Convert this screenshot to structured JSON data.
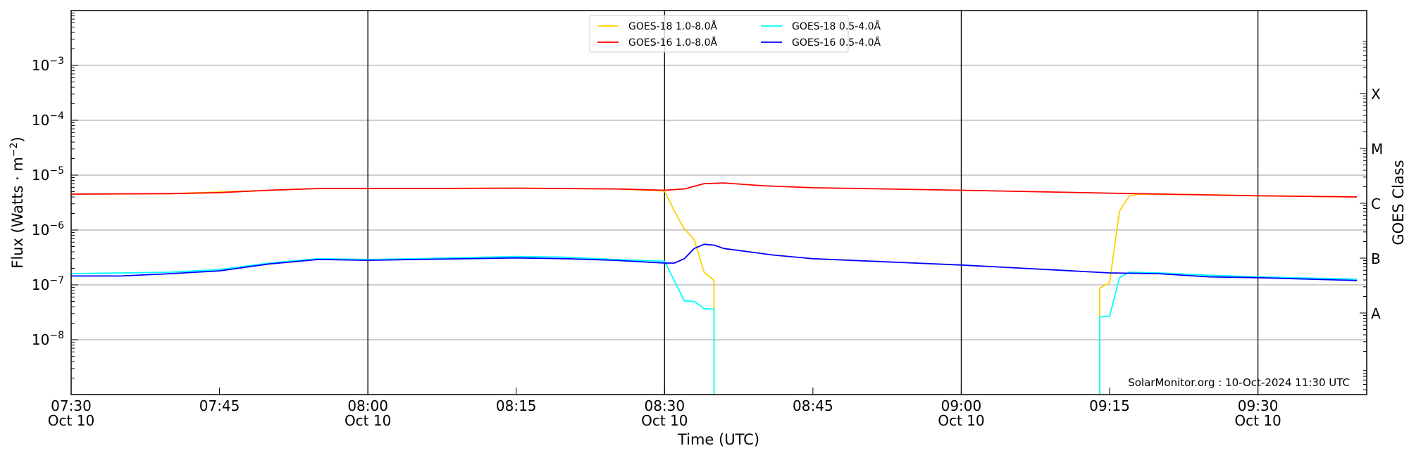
{
  "chart_data": {
    "type": "line",
    "xlabel": "Time (UTC)",
    "ylabel": "Flux (Watts · m",
    "ylabel_sup": "−2",
    "ylabel_close": ")",
    "right_ylabel": "GOES Class",
    "yscale": "log",
    "ylim": [
      1e-09,
      0.01
    ],
    "xlim": [
      "07:30",
      "09:41"
    ],
    "grid": "horizontal at decades",
    "legend_placement": "top-center",
    "y_ticks": [
      {
        "value": 1e-08,
        "base": "10",
        "exp": "−8"
      },
      {
        "value": 1e-07,
        "base": "10",
        "exp": "−7"
      },
      {
        "value": 1e-06,
        "base": "10",
        "exp": "−6"
      },
      {
        "value": 1e-05,
        "base": "10",
        "exp": "−5"
      },
      {
        "value": 0.0001,
        "base": "10",
        "exp": "−4"
      },
      {
        "value": 0.001,
        "base": "10",
        "exp": "−3"
      }
    ],
    "x_ticks": [
      {
        "time": "07:30",
        "label": "07:30",
        "date": "Oct 10"
      },
      {
        "time": "07:45",
        "label": "07:45",
        "date": ""
      },
      {
        "time": "08:00",
        "label": "08:00",
        "date": "Oct 10"
      },
      {
        "time": "08:15",
        "label": "08:15",
        "date": ""
      },
      {
        "time": "08:30",
        "label": "08:30",
        "date": "Oct 10"
      },
      {
        "time": "08:45",
        "label": "08:45",
        "date": ""
      },
      {
        "time": "09:00",
        "label": "09:00",
        "date": "Oct 10"
      },
      {
        "time": "09:15",
        "label": "09:15",
        "date": ""
      },
      {
        "time": "09:30",
        "label": "09:30",
        "date": "Oct 10"
      }
    ],
    "vertical_lines": [
      "08:00",
      "08:30",
      "09:00",
      "09:30"
    ],
    "goes_classes": [
      {
        "label": "X",
        "value": 0.000316
      },
      {
        "label": "M",
        "value": 3.16e-05
      },
      {
        "label": "C",
        "value": 3.16e-06
      },
      {
        "label": "B",
        "value": 3.16e-07
      },
      {
        "label": "A",
        "value": 3.16e-08
      }
    ],
    "series": [
      {
        "name": "GOES-18 1.0-8.0Å",
        "color": "#ffd000",
        "points": [
          [
            "07:30",
            4.5e-06
          ],
          [
            "07:40",
            4.6e-06
          ],
          [
            "07:50",
            5.3e-06
          ],
          [
            "07:55",
            5.7e-06
          ],
          [
            "08:05",
            5.7e-06
          ],
          [
            "08:15",
            5.8e-06
          ],
          [
            "08:25",
            5.6e-06
          ],
          [
            "08:30",
            5.15e-06
          ],
          [
            "08:31",
            2.2e-06
          ],
          [
            "08:32",
            1.05e-06
          ],
          [
            "08:33",
            6.7e-07
          ],
          [
            "08:34",
            1.7e-07
          ],
          [
            "08:35",
            1.2e-07
          ],
          [
            "08:35",
            0
          ],
          [
            "09:14",
            0
          ],
          [
            "09:14",
            8.7e-08
          ],
          [
            "09:15",
            1.1e-07
          ],
          [
            "09:16",
            2.2e-06
          ],
          [
            "09:17",
            4.2e-06
          ],
          [
            "09:18",
            4.5e-06
          ],
          [
            "09:25",
            4.4e-06
          ],
          [
            "09:30",
            4.2e-06
          ],
          [
            "09:40",
            4e-06
          ]
        ]
      },
      {
        "name": "GOES-16 1.0-8.0Å",
        "color": "#ff0000",
        "points": [
          [
            "07:30",
            4.5e-06
          ],
          [
            "07:40",
            4.6e-06
          ],
          [
            "07:45",
            4.8e-06
          ],
          [
            "07:50",
            5.3e-06
          ],
          [
            "07:55",
            5.7e-06
          ],
          [
            "08:05",
            5.7e-06
          ],
          [
            "08:15",
            5.8e-06
          ],
          [
            "08:25",
            5.6e-06
          ],
          [
            "08:30",
            5.3e-06
          ],
          [
            "08:32",
            5.6e-06
          ],
          [
            "08:34",
            7e-06
          ],
          [
            "08:36",
            7.2e-06
          ],
          [
            "08:40",
            6.4e-06
          ],
          [
            "08:45",
            5.9e-06
          ],
          [
            "09:00",
            5.3e-06
          ],
          [
            "09:15",
            4.7e-06
          ],
          [
            "09:30",
            4.2e-06
          ],
          [
            "09:40",
            4e-06
          ]
        ]
      },
      {
        "name": "GOES-18 0.5-4.0Å",
        "color": "#00ffff",
        "points": [
          [
            "07:30",
            1.6e-07
          ],
          [
            "07:40",
            1.7e-07
          ],
          [
            "07:45",
            1.9e-07
          ],
          [
            "07:50",
            2.5e-07
          ],
          [
            "07:55",
            3e-07
          ],
          [
            "08:00",
            2.9e-07
          ],
          [
            "08:05",
            3e-07
          ],
          [
            "08:15",
            3.3e-07
          ],
          [
            "08:20",
            3.2e-07
          ],
          [
            "08:25",
            2.9e-07
          ],
          [
            "08:30",
            2.7e-07
          ],
          [
            "08:32",
            5.1e-08
          ],
          [
            "08:33",
            5e-08
          ],
          [
            "08:34",
            3.7e-08
          ],
          [
            "08:35",
            3.6e-08
          ],
          [
            "08:35",
            0
          ],
          [
            "09:14",
            0
          ],
          [
            "09:14",
            2.6e-08
          ],
          [
            "09:15",
            2.7e-08
          ],
          [
            "09:16",
            1.35e-07
          ],
          [
            "09:17",
            1.7e-07
          ],
          [
            "09:20",
            1.65e-07
          ],
          [
            "09:25",
            1.5e-07
          ],
          [
            "09:30",
            1.4e-07
          ],
          [
            "09:40",
            1.27e-07
          ]
        ]
      },
      {
        "name": "GOES-16 0.5-4.0Å",
        "color": "#0000ff",
        "points": [
          [
            "07:30",
            1.45e-07
          ],
          [
            "07:35",
            1.45e-07
          ],
          [
            "07:40",
            1.6e-07
          ],
          [
            "07:45",
            1.8e-07
          ],
          [
            "07:50",
            2.4e-07
          ],
          [
            "07:55",
            2.9e-07
          ],
          [
            "08:00",
            2.8e-07
          ],
          [
            "08:05",
            2.9e-07
          ],
          [
            "08:15",
            3.1e-07
          ],
          [
            "08:20",
            3e-07
          ],
          [
            "08:25",
            2.8e-07
          ],
          [
            "08:30",
            2.5e-07
          ],
          [
            "08:31",
            2.5e-07
          ],
          [
            "08:32",
            3e-07
          ],
          [
            "08:33",
            4.6e-07
          ],
          [
            "08:34",
            5.5e-07
          ],
          [
            "08:35",
            5.3e-07
          ],
          [
            "08:36",
            4.6e-07
          ],
          [
            "08:39",
            3.9e-07
          ],
          [
            "08:41",
            3.5e-07
          ],
          [
            "08:45",
            3e-07
          ],
          [
            "09:00",
            2.3e-07
          ],
          [
            "09:10",
            1.85e-07
          ],
          [
            "09:15",
            1.65e-07
          ],
          [
            "09:20",
            1.6e-07
          ],
          [
            "09:25",
            1.4e-07
          ],
          [
            "09:30",
            1.35e-07
          ],
          [
            "09:40",
            1.2e-07
          ]
        ]
      }
    ],
    "annotation": "SolarMonitor.org : 10-Oct-2024 11:30 UTC"
  }
}
